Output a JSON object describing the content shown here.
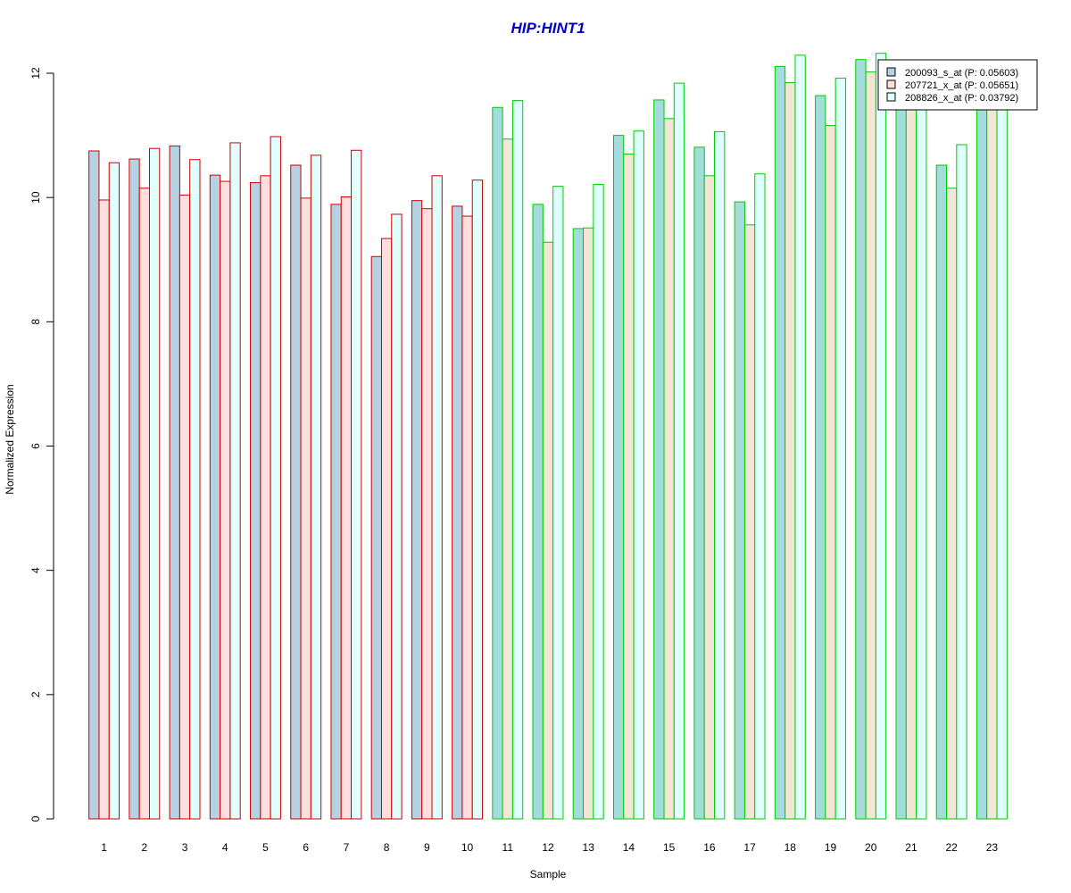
{
  "chart_data": {
    "type": "bar",
    "title": "HIP:HINT1",
    "xlabel": "Sample",
    "ylabel": "Normalized Expression",
    "ylim": [
      0,
      12.3
    ],
    "yticks": [
      0,
      2,
      4,
      6,
      8,
      10,
      12
    ],
    "categories": [
      "1",
      "2",
      "3",
      "4",
      "5",
      "6",
      "7",
      "8",
      "9",
      "10",
      "11",
      "12",
      "13",
      "14",
      "15",
      "16",
      "17",
      "18",
      "19",
      "20",
      "21",
      "22",
      "23"
    ],
    "series": [
      {
        "name": "200093_s_at (P: 0.05603)",
        "values": [
          10.75,
          10.62,
          10.83,
          10.36,
          10.24,
          10.52,
          9.89,
          9.05,
          9.95,
          9.86,
          11.45,
          9.89,
          9.5,
          11.0,
          11.57,
          10.81,
          9.93,
          12.11,
          11.64,
          12.22,
          11.71,
          10.52,
          11.57
        ]
      },
      {
        "name": "207721_x_at (P: 0.05651)",
        "values": [
          9.96,
          10.15,
          10.04,
          10.26,
          10.35,
          9.99,
          10.01,
          9.34,
          9.82,
          9.7,
          10.94,
          9.28,
          9.51,
          10.7,
          11.27,
          10.35,
          9.56,
          11.85,
          11.16,
          12.02,
          11.69,
          10.15,
          11.7
        ]
      },
      {
        "name": "208826_x_at (P: 0.03792)",
        "values": [
          10.56,
          10.79,
          10.61,
          10.88,
          10.98,
          10.68,
          10.76,
          9.73,
          10.35,
          10.28,
          11.56,
          10.18,
          10.21,
          11.07,
          11.84,
          11.06,
          10.38,
          12.29,
          11.92,
          12.32,
          11.83,
          10.85,
          11.93
        ]
      }
    ],
    "group_colors": {
      "samples_1_10_border": "#cc0000",
      "samples_11_23_border": "#00cc00"
    },
    "fill_colors_group1": [
      "#b4d2e2",
      "#ffdede",
      "#e0ffff"
    ],
    "fill_colors_group2": [
      "#a4dcdc",
      "#f3e6d6",
      "#e0ffff"
    ],
    "legend_fills": [
      "#b4d2e2",
      "#ffdede",
      "#e0ffff"
    ],
    "legend_position": "top-right",
    "grid": false
  }
}
